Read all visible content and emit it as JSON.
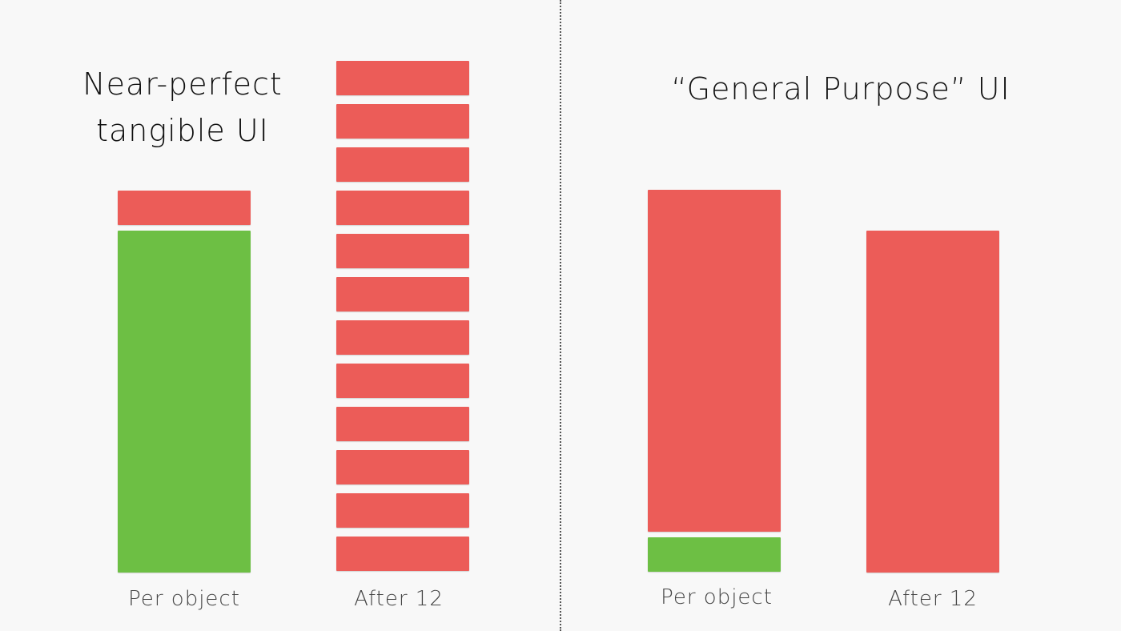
{
  "left_panel": {
    "title_line1": "Near-perfect",
    "title_line2": "tangible UI",
    "per_object_label": "Per object",
    "after_label": "After 12"
  },
  "right_panel": {
    "title": "“General Purpose” UI",
    "per_object_label": "Per object",
    "after_label": "After 12"
  },
  "colors": {
    "red": "#ec5c58",
    "green": "#6dbf44"
  }
}
